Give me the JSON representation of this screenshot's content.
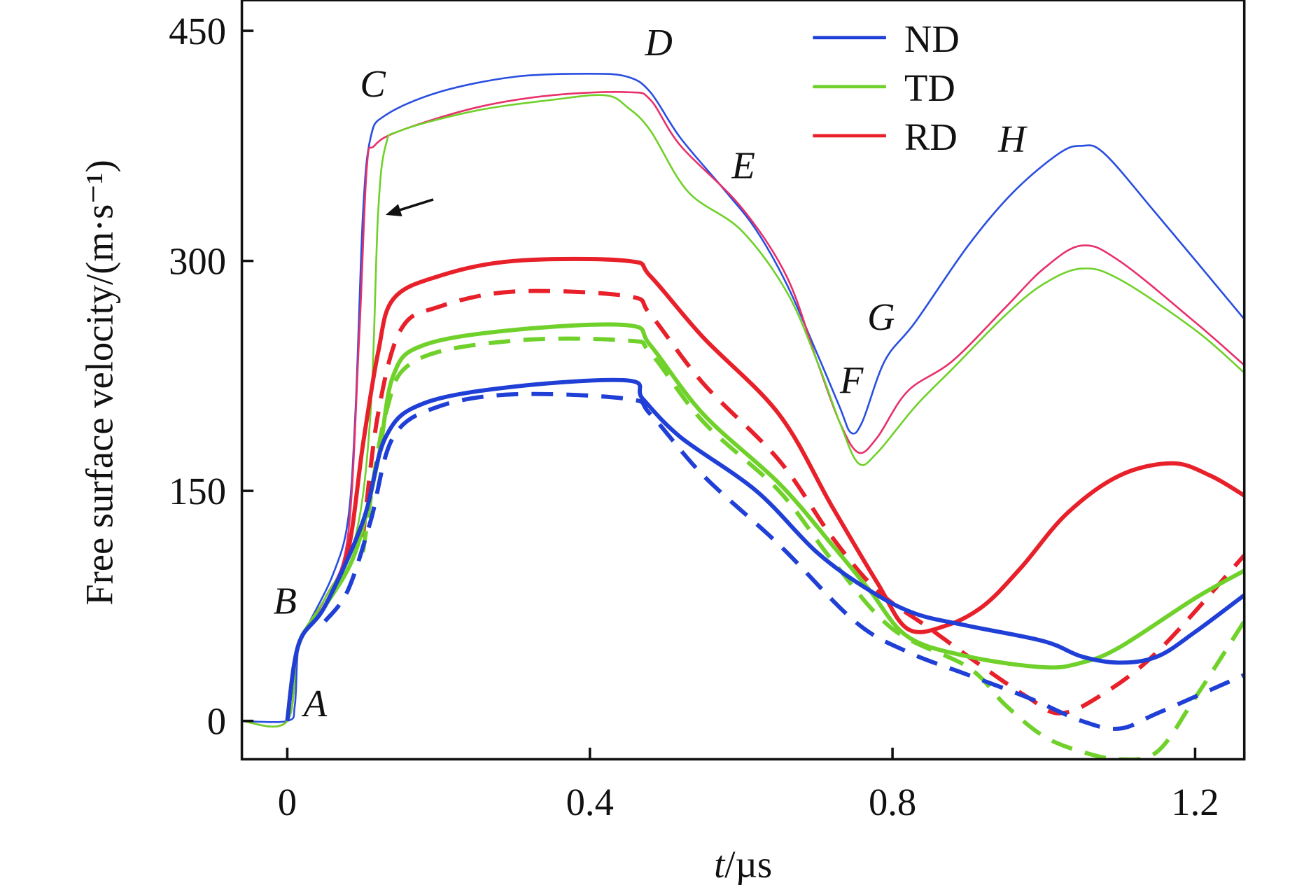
{
  "chart_data": {
    "type": "line",
    "title": "",
    "xlabel": "t/µs",
    "xlabel_italic_part": "t",
    "xlabel_rest": "/µs",
    "ylabel": "Free surface velocity/(m·s⁻¹)",
    "xlim": [
      -0.06,
      1.265
    ],
    "ylim": [
      -25,
      470
    ],
    "xticks": [
      0,
      0.4,
      0.8,
      1.2
    ],
    "xtick_labels": [
      "0",
      "0.4",
      "0.8",
      "1.2"
    ],
    "yticks": [
      0,
      150,
      300,
      450
    ],
    "ytick_labels": [
      "0",
      "150",
      "300",
      "450"
    ],
    "grid": false,
    "legend_position": "top-right",
    "legend": [
      {
        "name": "ND",
        "color": "#1f3fd6"
      },
      {
        "name": "TD",
        "color": "#6fd12a"
      },
      {
        "name": "RD",
        "color": "#e8202a"
      }
    ],
    "series": [
      {
        "name": "ND thin solid",
        "color": "#2a4fe0",
        "style": "thin",
        "points": [
          [
            -0.06,
            0
          ],
          [
            0,
            0
          ],
          [
            0.01,
            10
          ],
          [
            0.015,
            50
          ],
          [
            0.03,
            65
          ],
          [
            0.06,
            95
          ],
          [
            0.08,
            130
          ],
          [
            0.09,
            200
          ],
          [
            0.1,
            330
          ],
          [
            0.11,
            380
          ],
          [
            0.13,
            395
          ],
          [
            0.2,
            410
          ],
          [
            0.3,
            420
          ],
          [
            0.4,
            422
          ],
          [
            0.45,
            420
          ],
          [
            0.48,
            410
          ],
          [
            0.52,
            380
          ],
          [
            0.58,
            345
          ],
          [
            0.62,
            320
          ],
          [
            0.66,
            285
          ],
          [
            0.7,
            240
          ],
          [
            0.73,
            205
          ],
          [
            0.745,
            188
          ],
          [
            0.76,
            195
          ],
          [
            0.79,
            235
          ],
          [
            0.83,
            260
          ],
          [
            0.9,
            310
          ],
          [
            0.96,
            345
          ],
          [
            1.02,
            370
          ],
          [
            1.05,
            375
          ],
          [
            1.08,
            370
          ],
          [
            1.15,
            330
          ],
          [
            1.265,
            262
          ]
        ]
      },
      {
        "name": "RD thin solid",
        "color": "#e8306a",
        "style": "thin",
        "points": [
          [
            -0.06,
            0
          ],
          [
            0,
            0
          ],
          [
            0.015,
            50
          ],
          [
            0.05,
            80
          ],
          [
            0.08,
            120
          ],
          [
            0.095,
            250
          ],
          [
            0.105,
            360
          ],
          [
            0.115,
            375
          ],
          [
            0.15,
            385
          ],
          [
            0.25,
            400
          ],
          [
            0.35,
            408
          ],
          [
            0.45,
            410
          ],
          [
            0.48,
            405
          ],
          [
            0.52,
            375
          ],
          [
            0.6,
            335
          ],
          [
            0.66,
            290
          ],
          [
            0.7,
            235
          ],
          [
            0.73,
            195
          ],
          [
            0.755,
            175
          ],
          [
            0.78,
            185
          ],
          [
            0.82,
            215
          ],
          [
            0.88,
            235
          ],
          [
            0.95,
            270
          ],
          [
            1.0,
            295
          ],
          [
            1.05,
            310
          ],
          [
            1.1,
            300
          ],
          [
            1.2,
            260
          ],
          [
            1.265,
            232
          ]
        ]
      },
      {
        "name": "TD thin solid",
        "color": "#6fd12a",
        "style": "thin",
        "points": [
          [
            -0.06,
            0
          ],
          [
            0,
            0
          ],
          [
            0.015,
            50
          ],
          [
            0.05,
            80
          ],
          [
            0.09,
            120
          ],
          [
            0.11,
            200
          ],
          [
            0.12,
            330
          ],
          [
            0.13,
            375
          ],
          [
            0.15,
            385
          ],
          [
            0.25,
            398
          ],
          [
            0.35,
            405
          ],
          [
            0.42,
            408
          ],
          [
            0.45,
            400
          ],
          [
            0.48,
            385
          ],
          [
            0.53,
            345
          ],
          [
            0.6,
            320
          ],
          [
            0.66,
            280
          ],
          [
            0.7,
            235
          ],
          [
            0.73,
            195
          ],
          [
            0.755,
            168
          ],
          [
            0.78,
            175
          ],
          [
            0.83,
            205
          ],
          [
            0.88,
            230
          ],
          [
            0.95,
            265
          ],
          [
            1.0,
            285
          ],
          [
            1.05,
            295
          ],
          [
            1.1,
            288
          ],
          [
            1.2,
            255
          ],
          [
            1.265,
            227
          ]
        ]
      },
      {
        "name": "RD thick solid",
        "color": "#e8202a",
        "style": "thick",
        "points": [
          [
            0,
            0
          ],
          [
            0.015,
            50
          ],
          [
            0.05,
            75
          ],
          [
            0.08,
            110
          ],
          [
            0.1,
            180
          ],
          [
            0.12,
            240
          ],
          [
            0.14,
            275
          ],
          [
            0.2,
            290
          ],
          [
            0.3,
            300
          ],
          [
            0.45,
            300
          ],
          [
            0.48,
            290
          ],
          [
            0.55,
            250
          ],
          [
            0.65,
            200
          ],
          [
            0.72,
            140
          ],
          [
            0.78,
            90
          ],
          [
            0.82,
            60
          ],
          [
            0.87,
            62
          ],
          [
            0.92,
            75
          ],
          [
            0.97,
            100
          ],
          [
            1.03,
            135
          ],
          [
            1.1,
            160
          ],
          [
            1.17,
            168
          ],
          [
            1.22,
            160
          ],
          [
            1.265,
            147
          ]
        ]
      },
      {
        "name": "RD dashed",
        "color": "#e8202a",
        "style": "dashed",
        "points": [
          [
            0.1,
            120
          ],
          [
            0.12,
            200
          ],
          [
            0.15,
            255
          ],
          [
            0.2,
            270
          ],
          [
            0.3,
            280
          ],
          [
            0.45,
            277
          ],
          [
            0.48,
            265
          ],
          [
            0.55,
            220
          ],
          [
            0.65,
            170
          ],
          [
            0.72,
            120
          ],
          [
            0.78,
            85
          ],
          [
            0.85,
            60
          ],
          [
            0.92,
            35
          ],
          [
            0.98,
            15
          ],
          [
            1.02,
            5
          ],
          [
            1.07,
            15
          ],
          [
            1.15,
            45
          ],
          [
            1.265,
            108
          ]
        ]
      },
      {
        "name": "TD thick solid",
        "color": "#6fd12a",
        "style": "thick",
        "points": [
          [
            0,
            0
          ],
          [
            0.015,
            50
          ],
          [
            0.05,
            75
          ],
          [
            0.09,
            110
          ],
          [
            0.12,
            170
          ],
          [
            0.14,
            225
          ],
          [
            0.18,
            245
          ],
          [
            0.3,
            255
          ],
          [
            0.45,
            258
          ],
          [
            0.48,
            245
          ],
          [
            0.55,
            200
          ],
          [
            0.65,
            155
          ],
          [
            0.72,
            115
          ],
          [
            0.77,
            85
          ],
          [
            0.82,
            55
          ],
          [
            0.9,
            42
          ],
          [
            1.0,
            35
          ],
          [
            1.05,
            38
          ],
          [
            1.1,
            48
          ],
          [
            1.2,
            80
          ],
          [
            1.265,
            98
          ]
        ]
      },
      {
        "name": "TD dashed",
        "color": "#6fd12a",
        "style": "dashed",
        "points": [
          [
            0.1,
            110
          ],
          [
            0.13,
            200
          ],
          [
            0.17,
            235
          ],
          [
            0.3,
            248
          ],
          [
            0.45,
            248
          ],
          [
            0.48,
            240
          ],
          [
            0.55,
            195
          ],
          [
            0.65,
            150
          ],
          [
            0.72,
            105
          ],
          [
            0.8,
            60
          ],
          [
            0.9,
            35
          ],
          [
            0.95,
            10
          ],
          [
            1.0,
            -10
          ],
          [
            1.05,
            -20
          ],
          [
            1.1,
            -25
          ],
          [
            1.15,
            -20
          ],
          [
            1.2,
            15
          ],
          [
            1.265,
            65
          ]
        ]
      },
      {
        "name": "ND thick solid",
        "color": "#1f3fd6",
        "style": "thick",
        "points": [
          [
            0,
            0
          ],
          [
            0.015,
            50
          ],
          [
            0.05,
            75
          ],
          [
            0.1,
            130
          ],
          [
            0.13,
            185
          ],
          [
            0.18,
            207
          ],
          [
            0.3,
            218
          ],
          [
            0.45,
            222
          ],
          [
            0.47,
            210
          ],
          [
            0.52,
            185
          ],
          [
            0.62,
            150
          ],
          [
            0.7,
            110
          ],
          [
            0.77,
            85
          ],
          [
            0.83,
            70
          ],
          [
            0.9,
            62
          ],
          [
            1.0,
            52
          ],
          [
            1.05,
            42
          ],
          [
            1.1,
            38
          ],
          [
            1.15,
            42
          ],
          [
            1.2,
            58
          ],
          [
            1.265,
            82
          ]
        ]
      },
      {
        "name": "ND dashed",
        "color": "#1f3fd6",
        "style": "dashed",
        "points": [
          [
            0.05,
            65
          ],
          [
            0.08,
            85
          ],
          [
            0.11,
            130
          ],
          [
            0.14,
            185
          ],
          [
            0.2,
            205
          ],
          [
            0.3,
            213
          ],
          [
            0.45,
            210
          ],
          [
            0.48,
            200
          ],
          [
            0.55,
            160
          ],
          [
            0.65,
            115
          ],
          [
            0.75,
            65
          ],
          [
            0.82,
            45
          ],
          [
            0.9,
            30
          ],
          [
            0.98,
            15
          ],
          [
            1.05,
            0
          ],
          [
            1.1,
            -5
          ],
          [
            1.15,
            5
          ],
          [
            1.265,
            30
          ]
        ]
      }
    ],
    "annotations": [
      {
        "text": "A",
        "t": 0.037,
        "v": 3
      },
      {
        "text": "B",
        "t": -0.003,
        "v": 70
      },
      {
        "text": "C",
        "t": 0.113,
        "v": 407
      },
      {
        "text": "D",
        "t": 0.491,
        "v": 434
      },
      {
        "text": "E",
        "t": 0.603,
        "v": 354
      },
      {
        "text": "F",
        "t": 0.746,
        "v": 214
      },
      {
        "text": "G",
        "t": 0.785,
        "v": 255
      },
      {
        "text": "H",
        "t": 0.958,
        "v": 371
      }
    ],
    "arrow": {
      "from": [
        0.193,
        340
      ],
      "to": [
        0.13,
        330
      ]
    }
  }
}
